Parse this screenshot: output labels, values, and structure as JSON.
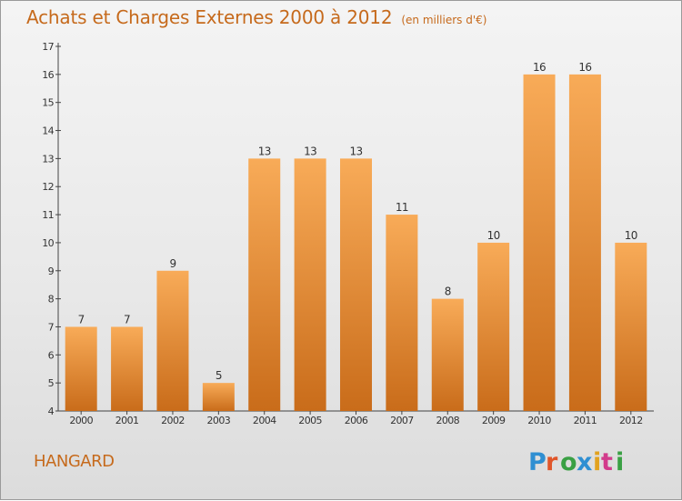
{
  "title": "Achats et Charges Externes 2000 à 2012",
  "subtitle": "(en milliers d'€)",
  "commune": "HANGARD",
  "logo_text": "Proxiti",
  "colors": {
    "bar_light": "#f6a552",
    "bar_dark": "#c86c1c",
    "title": "#c66a1c",
    "axis": "#444444"
  },
  "chart_data": {
    "type": "bar",
    "title": "Achats et Charges Externes 2000 à 2012",
    "subtitle": "(en milliers d'€)",
    "categories": [
      "2000",
      "2001",
      "2002",
      "2003",
      "2004",
      "2005",
      "2006",
      "2007",
      "2008",
      "2009",
      "2010",
      "2011",
      "2012"
    ],
    "values": [
      7,
      7,
      9,
      5,
      13,
      13,
      13,
      11,
      8,
      10,
      16,
      16,
      10
    ],
    "ylim": [
      4,
      17
    ],
    "yticks": [
      4,
      5,
      6,
      7,
      8,
      9,
      10,
      11,
      12,
      13,
      14,
      15,
      16,
      17
    ],
    "grid": false,
    "legend": "none"
  }
}
